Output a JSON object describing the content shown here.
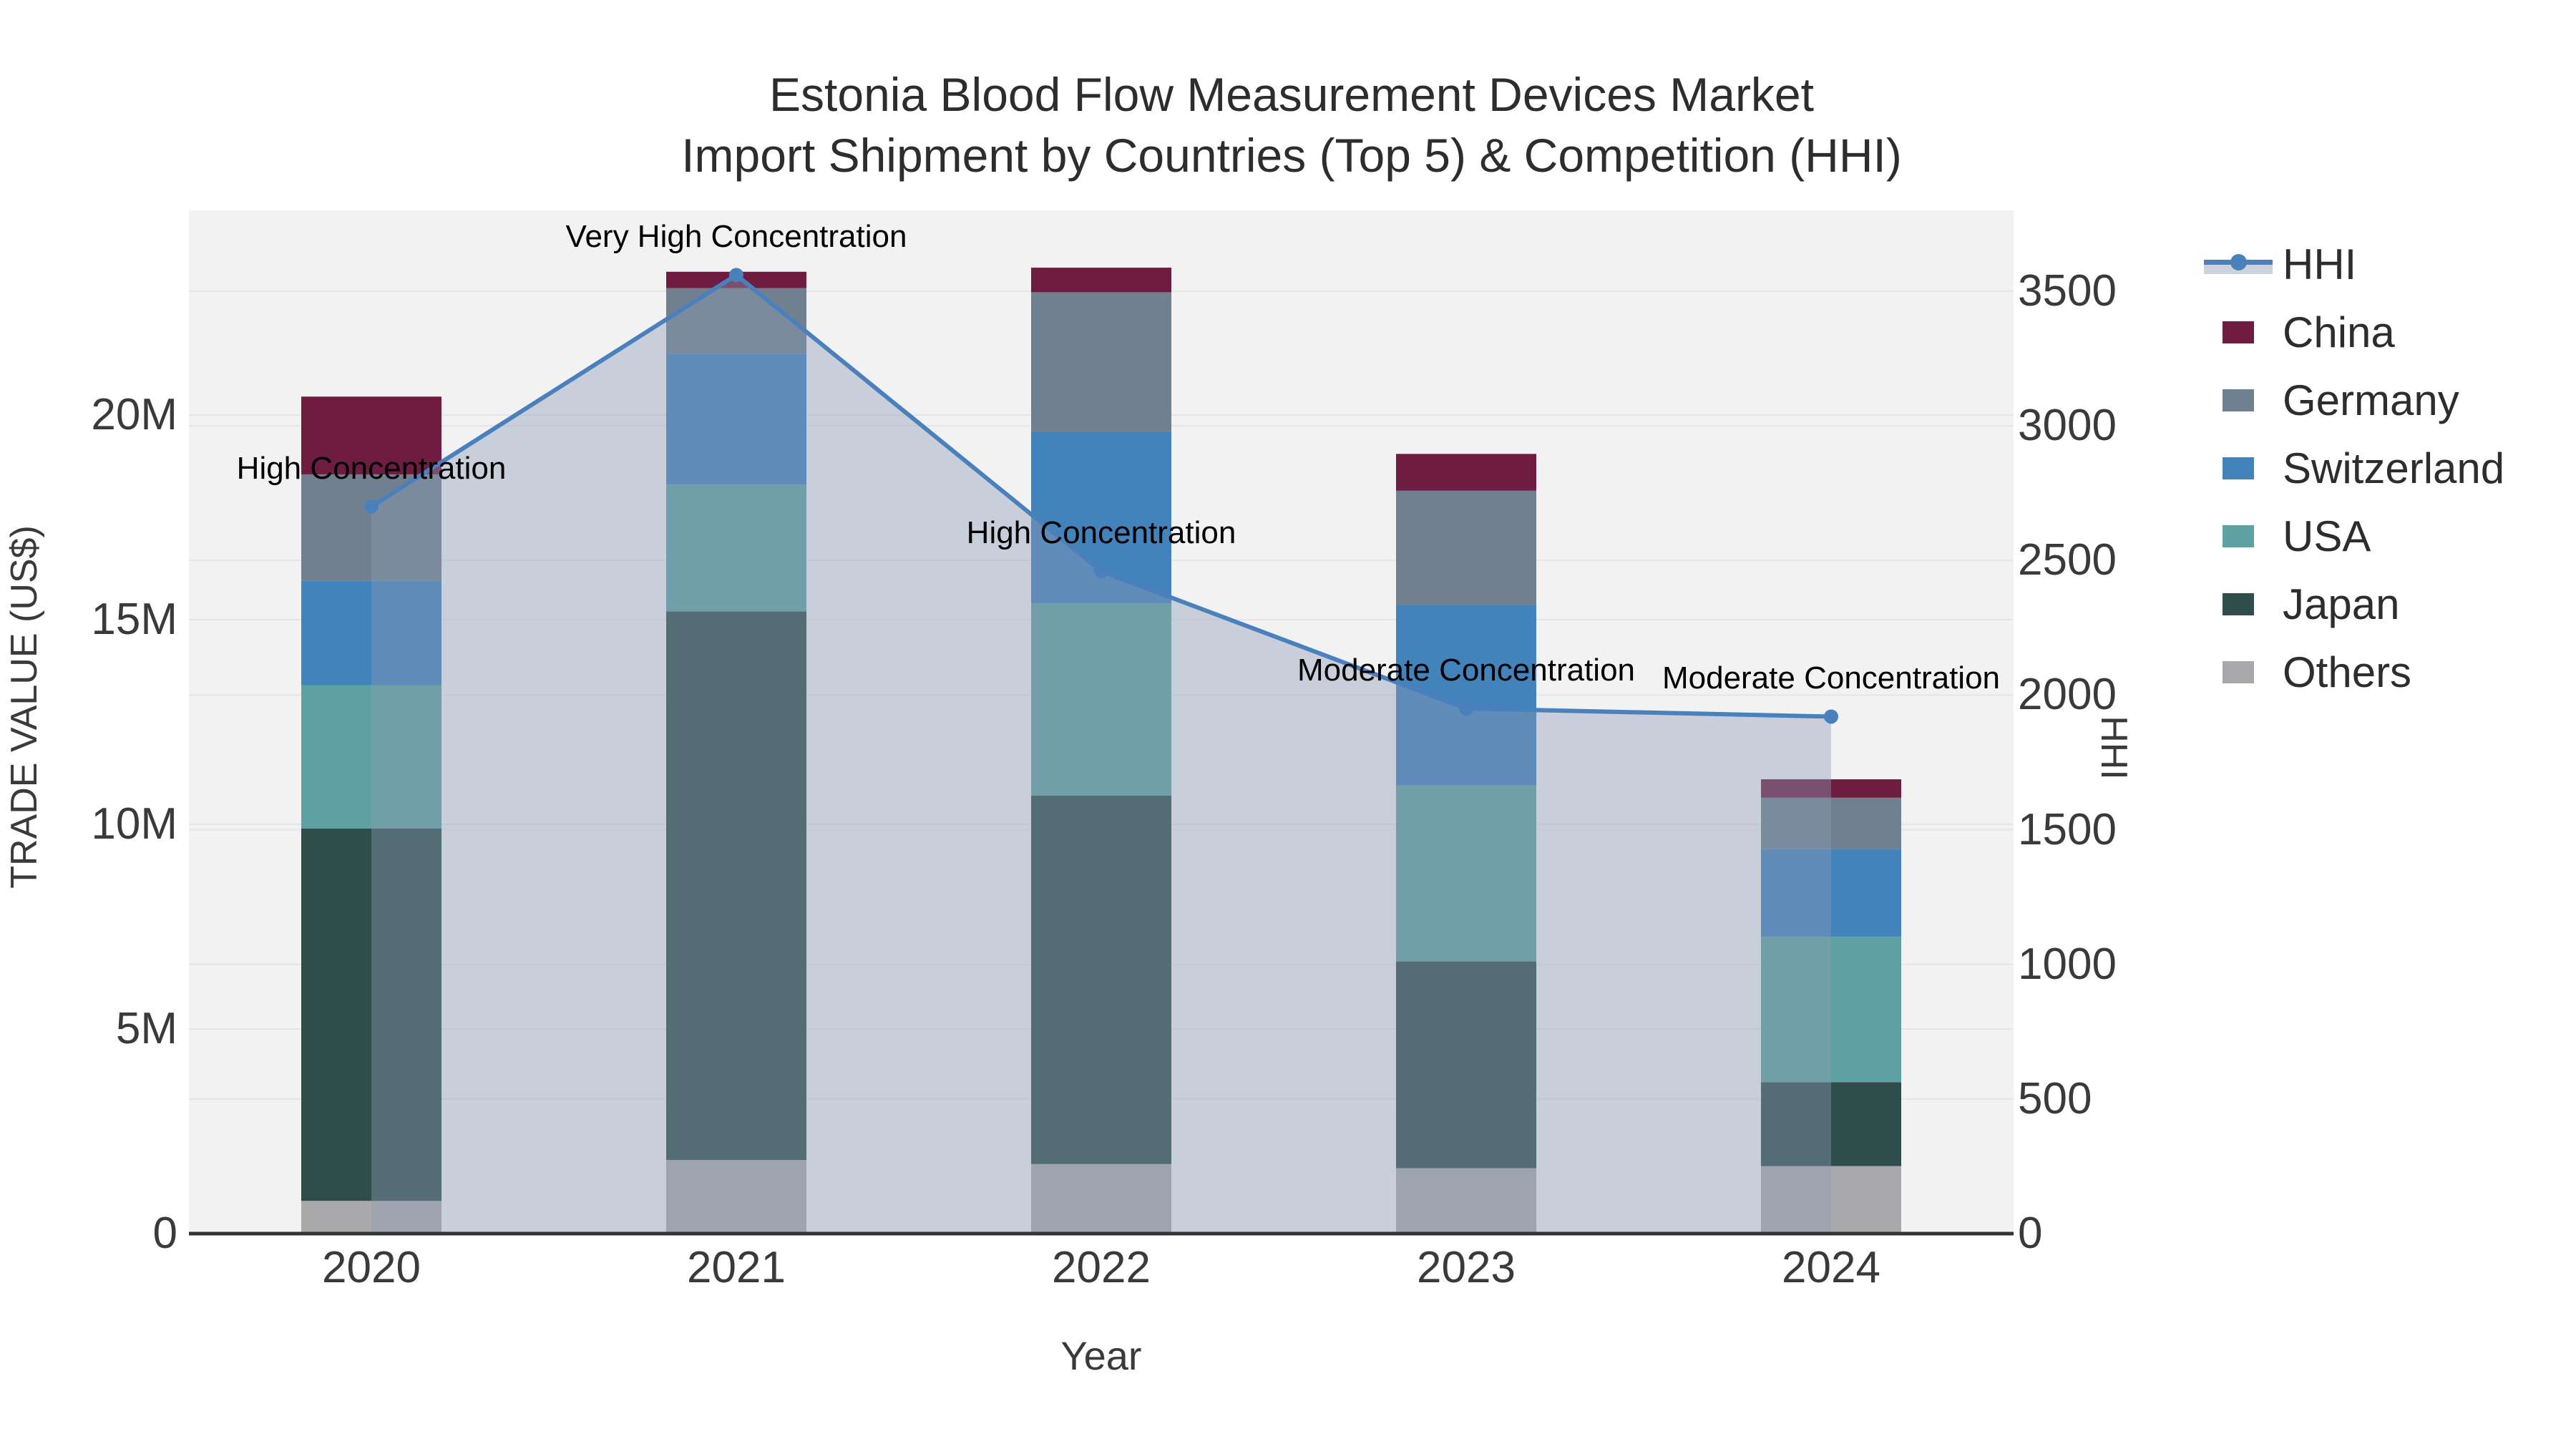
{
  "title": {
    "line1": "Estonia Blood Flow Measurement Devices Market",
    "line2": "Import Shipment by Countries (Top 5) & Competition (HHI)"
  },
  "axes": {
    "x_title": "Year",
    "y_left_title": "TRADE VALUE (US$)",
    "y_right_title": "HHI",
    "y_left_ticks": [
      {
        "value": 0,
        "label": "0"
      },
      {
        "value": 5,
        "label": "5M"
      },
      {
        "value": 10,
        "label": "10M"
      },
      {
        "value": 15,
        "label": "15M"
      },
      {
        "value": 20,
        "label": "20M"
      }
    ],
    "y_left_max": 25,
    "y_right_ticks": [
      {
        "value": 0,
        "label": "0"
      },
      {
        "value": 500,
        "label": "500"
      },
      {
        "value": 1000,
        "label": "1000"
      },
      {
        "value": 1500,
        "label": "1500"
      },
      {
        "value": 2000,
        "label": "2000"
      },
      {
        "value": 2500,
        "label": "2500"
      },
      {
        "value": 3000,
        "label": "3000"
      },
      {
        "value": 3500,
        "label": "3500"
      }
    ],
    "y_right_max": 3800,
    "grid_on": true
  },
  "chart_data": {
    "type": "stacked-bar+line",
    "categories": [
      "2020",
      "2021",
      "2022",
      "2023",
      "2024"
    ],
    "values_unit": "million US$ (trade value, left axis)",
    "stack_order_bottom_to_top": [
      "Others",
      "Japan",
      "USA",
      "Switzerland",
      "Germany",
      "China"
    ],
    "series": [
      {
        "name": "China",
        "color": "#6e1d41",
        "values": [
          1.9,
          0.4,
          0.6,
          0.9,
          0.45
        ]
      },
      {
        "name": "Germany",
        "color": "#71808f",
        "values": [
          2.6,
          1.6,
          3.4,
          2.8,
          1.25
        ]
      },
      {
        "name": "Switzerland",
        "color": "#4283bb",
        "values": [
          2.55,
          3.2,
          4.2,
          4.4,
          2.15
        ]
      },
      {
        "name": "USA",
        "color": "#5ea1a2",
        "values": [
          3.5,
          3.1,
          4.7,
          4.3,
          3.55
        ]
      },
      {
        "name": "Japan",
        "color": "#2f4d4a",
        "values": [
          9.1,
          13.4,
          9.0,
          5.05,
          2.05
        ]
      },
      {
        "name": "Others",
        "color": "#a9a9ac",
        "values": [
          0.8,
          1.8,
          1.7,
          1.6,
          1.65
        ]
      }
    ],
    "bar_totals": [
      20.45,
      23.5,
      23.6,
      19.05,
      11.1
    ],
    "hhi_line": {
      "name": "HHI",
      "axis": "right",
      "color": "#4a80bc",
      "area_fill": "rgba(140,155,180,0.40)",
      "values": [
        2700,
        3560,
        2460,
        1950,
        1920
      ]
    },
    "annotations": [
      {
        "category": "2020",
        "label": "High Concentration"
      },
      {
        "category": "2021",
        "label": "Very High Concentration"
      },
      {
        "category": "2022",
        "label": "High Concentration"
      },
      {
        "category": "2023",
        "label": "Moderate Concentration"
      },
      {
        "category": "2024",
        "label": "Moderate Concentration"
      }
    ],
    "legend_position": "right"
  },
  "legend": {
    "items": [
      {
        "label": "HHI",
        "type": "line",
        "color": "#4a80bc"
      },
      {
        "label": "China",
        "type": "swatch",
        "color": "#6e1d41"
      },
      {
        "label": "Germany",
        "type": "swatch",
        "color": "#71808f"
      },
      {
        "label": "Switzerland",
        "type": "swatch",
        "color": "#4283bb"
      },
      {
        "label": "USA",
        "type": "swatch",
        "color": "#5ea1a2"
      },
      {
        "label": "Japan",
        "type": "swatch",
        "color": "#2f4d4a"
      },
      {
        "label": "Others",
        "type": "swatch",
        "color": "#a9a9ac"
      }
    ]
  },
  "style": {
    "plot_bg": "#f2f2f3",
    "grid_color": "#e5e5e8",
    "axis_line_color": "#333333"
  }
}
